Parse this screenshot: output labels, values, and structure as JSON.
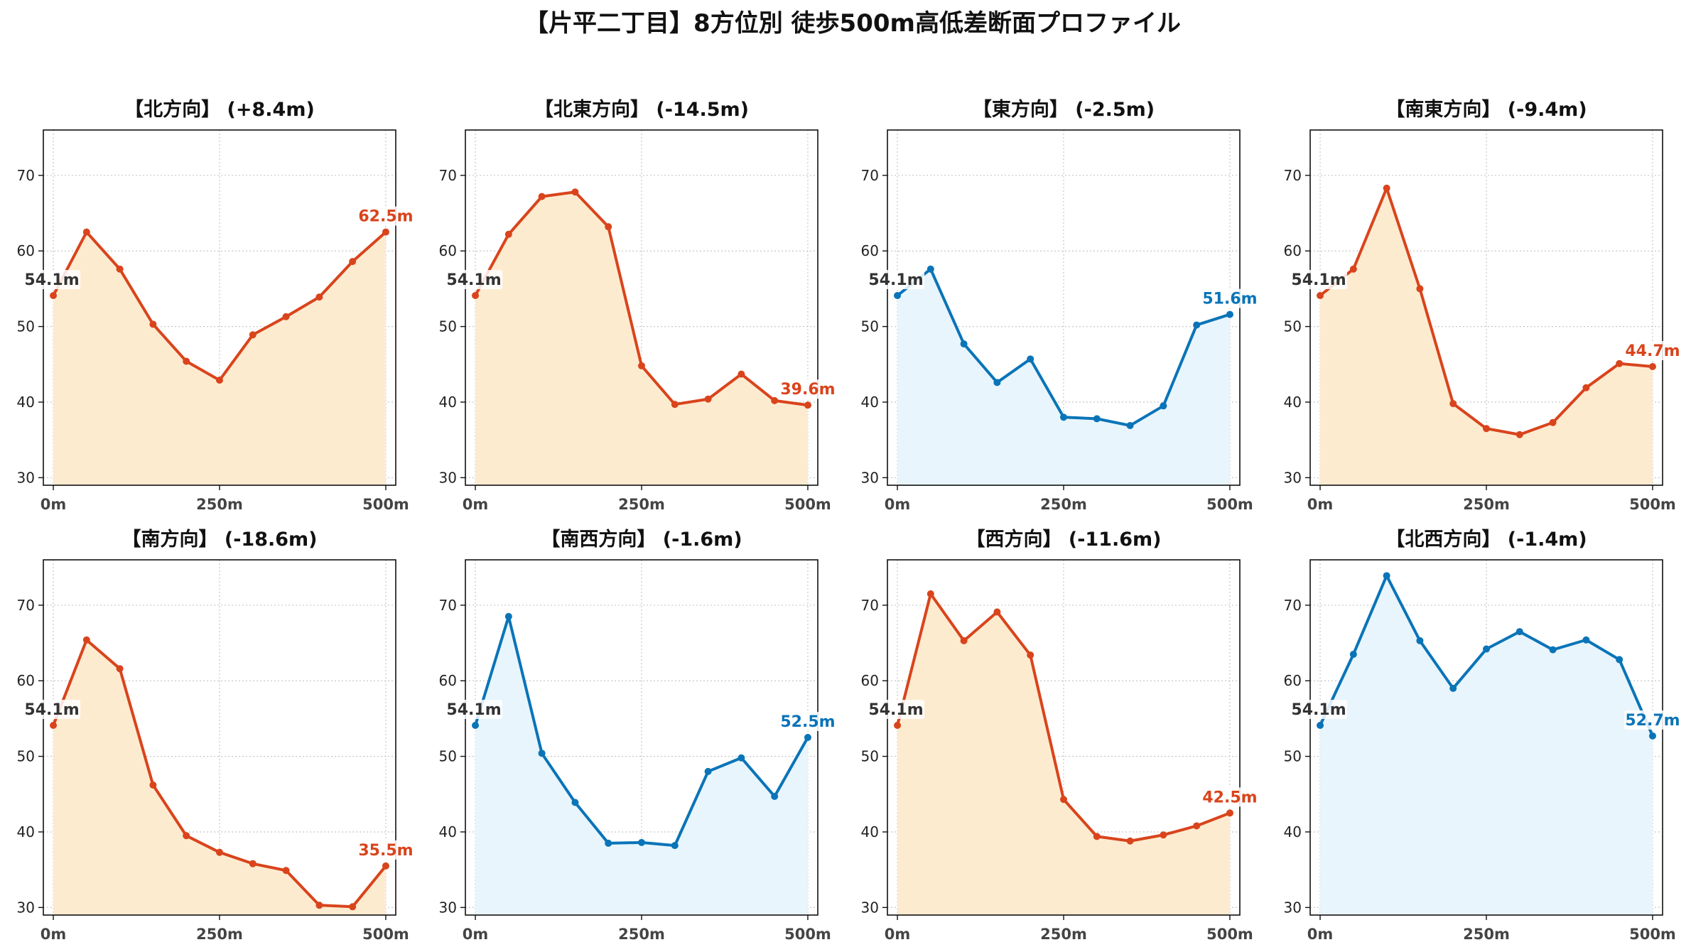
{
  "title": "【片平二丁目】8方位別 徒歩500m高低差断面プロファイル",
  "colors": {
    "down": "#d9441c",
    "down_fill": "#fdebd0",
    "up": "#0a74b8",
    "up_fill": "#e8f5fc",
    "start_label": "#333333",
    "grid": "#c8c8c8"
  },
  "chart_data": [
    {
      "type": "line",
      "title": "【北方向】 (+8.4m)",
      "x": [
        0,
        50,
        100,
        150,
        200,
        250,
        300,
        350,
        400,
        450,
        500
      ],
      "values": [
        54.1,
        62.5,
        57.6,
        50.3,
        45.4,
        42.9,
        48.9,
        51.3,
        53.9,
        58.6,
        62.5
      ],
      "color_key": "down",
      "start_label": "54.1m",
      "end_label": "62.5m",
      "ylim": [
        29,
        76
      ],
      "yticks": [
        30,
        40,
        50,
        60,
        70
      ],
      "xlim": [
        -15,
        515
      ],
      "xticks": [
        0,
        250,
        500
      ],
      "xtick_labels": [
        "0m",
        "250m",
        "500m"
      ],
      "grid": true
    },
    {
      "type": "line",
      "title": "【北東方向】 (-14.5m)",
      "x": [
        0,
        50,
        100,
        150,
        200,
        250,
        300,
        350,
        400,
        450,
        500
      ],
      "values": [
        54.1,
        62.2,
        67.2,
        67.8,
        63.2,
        44.8,
        39.7,
        40.4,
        43.7,
        40.2,
        39.6
      ],
      "color_key": "down",
      "start_label": "54.1m",
      "end_label": "39.6m",
      "ylim": [
        29,
        76
      ],
      "yticks": [
        30,
        40,
        50,
        60,
        70
      ],
      "xlim": [
        -15,
        515
      ],
      "xticks": [
        0,
        250,
        500
      ],
      "xtick_labels": [
        "0m",
        "250m",
        "500m"
      ],
      "grid": true
    },
    {
      "type": "line",
      "title": "【東方向】 (-2.5m)",
      "x": [
        0,
        50,
        100,
        150,
        200,
        250,
        300,
        350,
        400,
        450,
        500
      ],
      "values": [
        54.1,
        57.6,
        47.7,
        42.6,
        45.7,
        38.0,
        37.8,
        36.9,
        39.5,
        50.2,
        51.6
      ],
      "color_key": "up",
      "start_label": "54.1m",
      "end_label": "51.6m",
      "ylim": [
        29,
        76
      ],
      "yticks": [
        30,
        40,
        50,
        60,
        70
      ],
      "xlim": [
        -15,
        515
      ],
      "xticks": [
        0,
        250,
        500
      ],
      "xtick_labels": [
        "0m",
        "250m",
        "500m"
      ],
      "grid": true
    },
    {
      "type": "line",
      "title": "【南東方向】 (-9.4m)",
      "x": [
        0,
        50,
        100,
        150,
        200,
        250,
        300,
        350,
        400,
        450,
        500
      ],
      "values": [
        54.1,
        57.6,
        68.3,
        55.0,
        39.8,
        36.5,
        35.7,
        37.3,
        41.9,
        45.1,
        44.7
      ],
      "color_key": "down",
      "start_label": "54.1m",
      "end_label": "44.7m",
      "ylim": [
        29,
        76
      ],
      "yticks": [
        30,
        40,
        50,
        60,
        70
      ],
      "xlim": [
        -15,
        515
      ],
      "xticks": [
        0,
        250,
        500
      ],
      "xtick_labels": [
        "0m",
        "250m",
        "500m"
      ],
      "grid": true
    },
    {
      "type": "line",
      "title": "【南方向】 (-18.6m)",
      "x": [
        0,
        50,
        100,
        150,
        200,
        250,
        300,
        350,
        400,
        450,
        500
      ],
      "values": [
        54.1,
        65.4,
        61.6,
        46.2,
        39.5,
        37.3,
        35.8,
        34.9,
        30.3,
        30.1,
        35.5
      ],
      "color_key": "down",
      "start_label": "54.1m",
      "end_label": "35.5m",
      "ylim": [
        29,
        76
      ],
      "yticks": [
        30,
        40,
        50,
        60,
        70
      ],
      "xlim": [
        -15,
        515
      ],
      "xticks": [
        0,
        250,
        500
      ],
      "xtick_labels": [
        "0m",
        "250m",
        "500m"
      ],
      "grid": true
    },
    {
      "type": "line",
      "title": "【南西方向】 (-1.6m)",
      "x": [
        0,
        50,
        100,
        150,
        200,
        250,
        300,
        350,
        400,
        450,
        500
      ],
      "values": [
        54.1,
        68.5,
        50.4,
        43.9,
        38.5,
        38.6,
        38.2,
        48.0,
        49.8,
        44.7,
        52.5
      ],
      "color_key": "up",
      "start_label": "54.1m",
      "end_label": "52.5m",
      "ylim": [
        29,
        76
      ],
      "yticks": [
        30,
        40,
        50,
        60,
        70
      ],
      "xlim": [
        -15,
        515
      ],
      "xticks": [
        0,
        250,
        500
      ],
      "xtick_labels": [
        "0m",
        "250m",
        "500m"
      ],
      "grid": true
    },
    {
      "type": "line",
      "title": "【西方向】 (-11.6m)",
      "x": [
        0,
        50,
        100,
        150,
        200,
        250,
        300,
        350,
        400,
        450,
        500
      ],
      "values": [
        54.1,
        71.5,
        65.3,
        69.1,
        63.4,
        44.3,
        39.4,
        38.8,
        39.6,
        40.8,
        42.5
      ],
      "color_key": "down",
      "start_label": "54.1m",
      "end_label": "42.5m",
      "ylim": [
        29,
        76
      ],
      "yticks": [
        30,
        40,
        50,
        60,
        70
      ],
      "xlim": [
        -15,
        515
      ],
      "xticks": [
        0,
        250,
        500
      ],
      "xtick_labels": [
        "0m",
        "250m",
        "500m"
      ],
      "grid": true
    },
    {
      "type": "line",
      "title": "【北西方向】 (-1.4m)",
      "x": [
        0,
        50,
        100,
        150,
        200,
        250,
        300,
        350,
        400,
        450,
        500
      ],
      "values": [
        54.1,
        63.5,
        73.9,
        65.3,
        59.0,
        64.2,
        66.5,
        64.1,
        65.4,
        62.8,
        52.7
      ],
      "color_key": "up",
      "start_label": "54.1m",
      "end_label": "52.7m",
      "ylim": [
        29,
        76
      ],
      "yticks": [
        30,
        40,
        50,
        60,
        70
      ],
      "xlim": [
        -15,
        515
      ],
      "xticks": [
        0,
        250,
        500
      ],
      "xtick_labels": [
        "0m",
        "250m",
        "500m"
      ],
      "grid": true
    }
  ]
}
